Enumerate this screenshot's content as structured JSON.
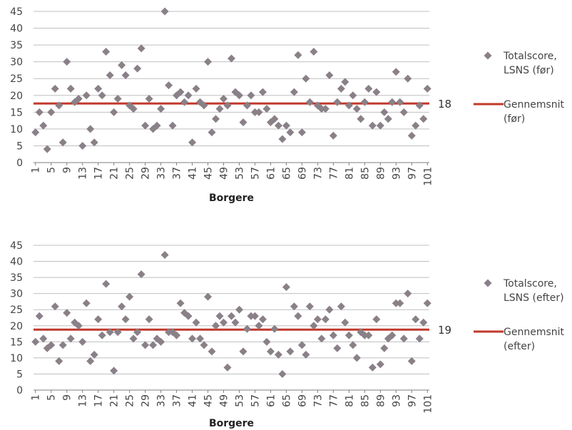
{
  "colors": {
    "marker": "#8a8088",
    "average_line": "#c0392b",
    "grid": "#bfbfbf",
    "axis": "#7f7f7f"
  },
  "chart_data": [
    {
      "type": "scatter",
      "xlabel": "Borgere",
      "ylim": [
        0,
        45
      ],
      "yticks": [
        0,
        5,
        10,
        15,
        20,
        25,
        30,
        35,
        40,
        45
      ],
      "xticks": [
        1,
        5,
        9,
        13,
        17,
        21,
        25,
        29,
        33,
        37,
        41,
        45,
        49,
        53,
        57,
        61,
        65,
        69,
        73,
        77,
        81,
        85,
        89,
        93,
        97,
        101
      ],
      "grid": true,
      "legend_position": "right",
      "series": [
        {
          "name": "Totalscore, LSNS (før)",
          "legend_lines": [
            "Totalscore,",
            "LSNS (før)"
          ],
          "marker": "diamond",
          "x": [
            1,
            2,
            3,
            4,
            5,
            6,
            7,
            8,
            9,
            10,
            11,
            12,
            13,
            14,
            15,
            16,
            17,
            18,
            19,
            20,
            21,
            22,
            23,
            24,
            25,
            26,
            27,
            28,
            29,
            30,
            31,
            32,
            33,
            34,
            35,
            36,
            37,
            38,
            39,
            40,
            41,
            42,
            43,
            44,
            45,
            46,
            47,
            48,
            49,
            50,
            51,
            52,
            53,
            54,
            55,
            56,
            57,
            58,
            59,
            60,
            61,
            62,
            63,
            64,
            65,
            66,
            67,
            68,
            69,
            70,
            71,
            72,
            73,
            74,
            75,
            76,
            77,
            78,
            79,
            80,
            81,
            82,
            83,
            84,
            85,
            86,
            87,
            88,
            89,
            90,
            91,
            92,
            93,
            94,
            95,
            96,
            97,
            98,
            99,
            100,
            101
          ],
          "y": [
            9,
            15,
            11,
            4,
            15,
            22,
            17,
            6,
            30,
            22,
            18,
            19,
            5,
            20,
            10,
            6,
            22,
            20,
            33,
            26,
            15,
            19,
            29,
            26,
            17,
            16,
            28,
            34,
            11,
            19,
            10,
            11,
            16,
            45,
            23,
            11,
            20,
            21,
            18,
            20,
            6,
            22,
            18,
            17,
            30,
            9,
            13,
            16,
            19,
            17,
            31,
            21,
            20,
            12,
            17,
            20,
            15,
            15,
            21,
            16,
            12,
            13,
            11,
            7,
            11,
            9,
            21,
            32,
            9,
            25,
            18,
            33,
            17,
            16,
            16,
            26,
            8,
            18,
            22,
            24,
            17,
            20,
            16,
            13,
            18,
            22,
            11,
            21,
            11,
            15,
            13,
            18,
            27,
            18,
            15,
            25,
            8,
            11,
            17,
            13,
            22
          ]
        },
        {
          "name": "Gennemsnit (før)",
          "legend_lines": [
            "Gennemsnit",
            "(før)"
          ],
          "type": "line",
          "value": 17.6,
          "label": "18"
        }
      ]
    },
    {
      "type": "scatter",
      "xlabel": "Borgere",
      "ylim": [
        0,
        45
      ],
      "yticks": [
        0,
        5,
        10,
        15,
        20,
        25,
        30,
        35,
        40,
        45
      ],
      "xticks": [
        1,
        5,
        9,
        13,
        17,
        21,
        25,
        29,
        33,
        37,
        41,
        45,
        49,
        53,
        57,
        61,
        65,
        69,
        73,
        77,
        81,
        85,
        89,
        93,
        97,
        101
      ],
      "grid": true,
      "legend_position": "right",
      "series": [
        {
          "name": "Totalscore, LSNS (efter)",
          "legend_lines": [
            "Totalscore,",
            "LSNS (efter)"
          ],
          "marker": "diamond",
          "x": [
            1,
            2,
            3,
            4,
            5,
            6,
            7,
            8,
            9,
            10,
            11,
            12,
            13,
            14,
            15,
            16,
            17,
            18,
            19,
            20,
            21,
            22,
            23,
            24,
            25,
            26,
            27,
            28,
            29,
            30,
            31,
            32,
            33,
            34,
            35,
            36,
            37,
            38,
            39,
            40,
            41,
            42,
            43,
            44,
            45,
            46,
            47,
            48,
            49,
            50,
            51,
            52,
            53,
            54,
            55,
            56,
            57,
            58,
            59,
            60,
            61,
            62,
            63,
            64,
            65,
            66,
            67,
            68,
            69,
            70,
            71,
            72,
            73,
            74,
            75,
            76,
            77,
            78,
            79,
            80,
            81,
            82,
            83,
            84,
            85,
            86,
            87,
            88,
            89,
            90,
            91,
            92,
            93,
            94,
            95,
            96,
            97,
            98,
            99,
            100,
            101
          ],
          "y": [
            15,
            23,
            16,
            13,
            14,
            26,
            9,
            14,
            24,
            16,
            21,
            20,
            15,
            27,
            9,
            11,
            22,
            17,
            33,
            18,
            6,
            18,
            26,
            22,
            29,
            16,
            18,
            36,
            14,
            22,
            14,
            16,
            15,
            42,
            18,
            18,
            17,
            27,
            24,
            23,
            16,
            21,
            16,
            14,
            29,
            12,
            20,
            23,
            21,
            7,
            23,
            21,
            25,
            12,
            19,
            23,
            23,
            20,
            22,
            15,
            12,
            19,
            11,
            5,
            32,
            12,
            26,
            23,
            14,
            11,
            26,
            20,
            22,
            16,
            22,
            25,
            17,
            13,
            26,
            21,
            17,
            14,
            10,
            18,
            17,
            17,
            7,
            22,
            8,
            13,
            16,
            17,
            27,
            27,
            16,
            30,
            9,
            22,
            16,
            21,
            27
          ]
        },
        {
          "name": "Gennemsnit (efter)",
          "legend_lines": [
            "Gennemsnit",
            "(efter)"
          ],
          "type": "line",
          "value": 18.8,
          "label": "19"
        }
      ]
    }
  ]
}
